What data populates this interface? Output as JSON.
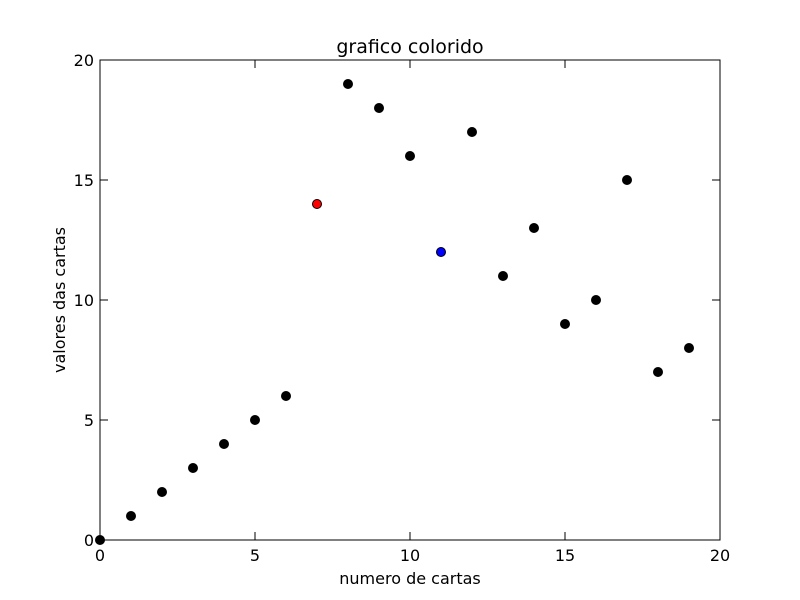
{
  "chart_data": {
    "type": "scatter",
    "title": "grafico colorido",
    "xlabel": "numero de cartas",
    "ylabel": "valores das cartas",
    "xlim": [
      0,
      20
    ],
    "ylim": [
      0,
      20
    ],
    "xticks": [
      0,
      5,
      10,
      15,
      20
    ],
    "yticks": [
      0,
      5,
      10,
      15,
      20
    ],
    "xtick_labels": [
      "0",
      "5",
      "10",
      "15",
      "20"
    ],
    "ytick_labels": [
      "0",
      "5",
      "10",
      "15",
      "20"
    ],
    "grid": false,
    "series": [
      {
        "points": [
          {
            "x": 0,
            "y": 0,
            "color": "#000000"
          },
          {
            "x": 1,
            "y": 1,
            "color": "#000000"
          },
          {
            "x": 2,
            "y": 2,
            "color": "#000000"
          },
          {
            "x": 3,
            "y": 3,
            "color": "#000000"
          },
          {
            "x": 4,
            "y": 4,
            "color": "#000000"
          },
          {
            "x": 5,
            "y": 5,
            "color": "#000000"
          },
          {
            "x": 6,
            "y": 6,
            "color": "#000000"
          },
          {
            "x": 7,
            "y": 14,
            "color": "#ff0000"
          },
          {
            "x": 8,
            "y": 19,
            "color": "#000000"
          },
          {
            "x": 9,
            "y": 18,
            "color": "#000000"
          },
          {
            "x": 10,
            "y": 16,
            "color": "#000000"
          },
          {
            "x": 11,
            "y": 12,
            "color": "#0000ff"
          },
          {
            "x": 12,
            "y": 17,
            "color": "#000000"
          },
          {
            "x": 13,
            "y": 11,
            "color": "#000000"
          },
          {
            "x": 14,
            "y": 13,
            "color": "#000000"
          },
          {
            "x": 15,
            "y": 9,
            "color": "#000000"
          },
          {
            "x": 16,
            "y": 10,
            "color": "#000000"
          },
          {
            "x": 17,
            "y": 15,
            "color": "#000000"
          },
          {
            "x": 18,
            "y": 7,
            "color": "#000000"
          },
          {
            "x": 19,
            "y": 8,
            "color": "#000000"
          }
        ]
      }
    ],
    "colors": {
      "default_marker": "#000000",
      "highlight_red": "#ff0000",
      "highlight_blue": "#0000ff",
      "axes": "#000000",
      "background": "#ffffff"
    }
  }
}
